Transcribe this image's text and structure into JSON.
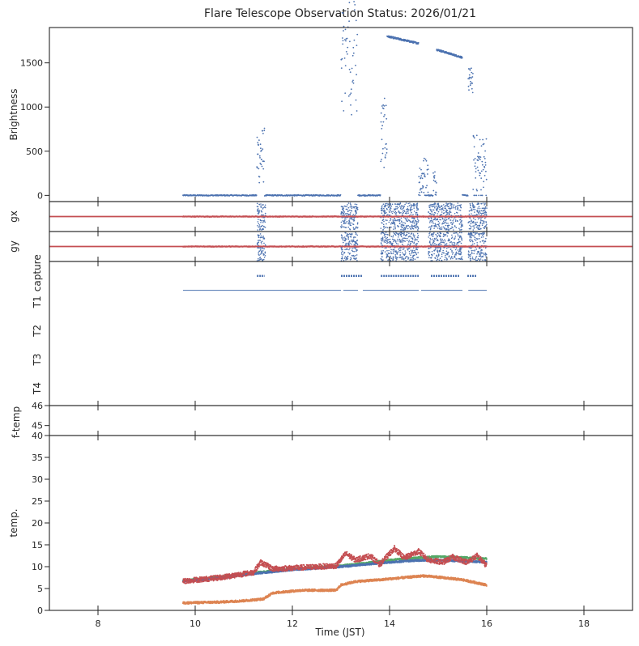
{
  "title": "Flare Telescope Observation Status: 2026/01/21",
  "xlabel": "Time (JST)",
  "xlim": [
    7,
    19
  ],
  "xticks": [
    8,
    10,
    12,
    14,
    16,
    18
  ],
  "colors": {
    "blue": "#4c72b0",
    "orange": "#dd8452",
    "green": "#55a868",
    "red": "#c44e52",
    "text": "#262626"
  },
  "chart_data": [
    {
      "id": "brightness",
      "type": "scatter",
      "ylabel": "Brightness",
      "ylim": [
        -70,
        1900
      ],
      "yticks": [
        0,
        500,
        1000,
        1500
      ],
      "observation_span": [
        9.75,
        16.0
      ],
      "series": [
        {
          "color": "blue",
          "segments": [
            {
              "x0": 9.75,
              "x1": 11.27,
              "y": 0,
              "mode": "flat"
            },
            {
              "x0": 11.27,
              "x1": 11.43,
              "y": 450,
              "spread": 650,
              "mode": "burst"
            },
            {
              "x0": 11.43,
              "x1": 13.0,
              "y": 0,
              "mode": "flat"
            },
            {
              "x0": 13.0,
              "x1": 13.35,
              "y": 1800,
              "spread": 1800,
              "mode": "burst"
            },
            {
              "x0": 13.35,
              "x1": 13.82,
              "y": 0,
              "mode": "flat"
            },
            {
              "x0": 13.82,
              "x1": 13.95,
              "y": 700,
              "spread": 800,
              "mode": "burst"
            },
            {
              "x0": 13.95,
              "x1": 14.6,
              "y0": 1800,
              "y1": 1720,
              "mode": "ramp"
            },
            {
              "x0": 14.6,
              "x1": 14.8,
              "y": 200,
              "spread": 500,
              "mode": "burst"
            },
            {
              "x0": 14.8,
              "x1": 14.9,
              "y": 0,
              "mode": "flat"
            },
            {
              "x0": 14.9,
              "x1": 14.97,
              "y": 150,
              "spread": 300,
              "mode": "burst"
            },
            {
              "x0": 14.97,
              "x1": 15.5,
              "y0": 1650,
              "y1": 1560,
              "mode": "ramp"
            },
            {
              "x0": 15.5,
              "x1": 15.62,
              "y": 0,
              "mode": "flat"
            },
            {
              "x0": 15.62,
              "x1": 15.72,
              "y": 1300,
              "spread": 300,
              "mode": "burst"
            },
            {
              "x0": 15.72,
              "x1": 16.0,
              "y": 300,
              "spread": 800,
              "mode": "burst"
            }
          ]
        }
      ]
    },
    {
      "id": "gx",
      "type": "scatter",
      "ylabel": "gx",
      "ylim": [
        -1,
        1
      ],
      "reference_line": {
        "y": 0,
        "color": "red"
      },
      "series": [
        {
          "color": "red",
          "x0": 9.75,
          "x1": 16.0,
          "y": 0,
          "mode": "flat"
        },
        {
          "color": "blue",
          "noise_windows": [
            [
              11.27,
              11.45
            ],
            [
              13.0,
              13.35
            ],
            [
              13.82,
              14.6
            ],
            [
              14.8,
              15.5
            ],
            [
              15.62,
              16.0
            ]
          ],
          "spread": 0.9
        }
      ]
    },
    {
      "id": "gy",
      "type": "scatter",
      "ylabel": "gy",
      "ylim": [
        -1,
        1
      ],
      "reference_line": {
        "y": 0,
        "color": "red"
      },
      "series": [
        {
          "color": "red",
          "x0": 9.75,
          "x1": 16.0,
          "y": 0,
          "mode": "flat"
        },
        {
          "color": "blue",
          "noise_windows": [
            [
              11.27,
              11.45
            ],
            [
              13.0,
              13.35
            ],
            [
              13.82,
              14.6
            ],
            [
              14.8,
              15.5
            ],
            [
              15.62,
              16.0
            ]
          ],
          "spread": 0.95
        }
      ]
    },
    {
      "id": "status",
      "type": "scatter",
      "categories": [
        "capture",
        "T1",
        "T2",
        "T3",
        "T4"
      ],
      "series": [
        {
          "name": "capture",
          "color": "blue",
          "ranges": [
            [
              11.27,
              11.43
            ],
            [
              13.0,
              13.45
            ],
            [
              13.82,
              14.6
            ],
            [
              14.85,
              15.45
            ],
            [
              15.6,
              15.8
            ]
          ],
          "row": 0.5
        },
        {
          "name": "T1",
          "color": "blue",
          "ranges": [
            [
              9.75,
              13.0
            ],
            [
              13.05,
              13.35
            ],
            [
              13.45,
              14.6
            ],
            [
              14.65,
              15.5
            ],
            [
              15.62,
              16.0
            ]
          ],
          "row": 1
        }
      ]
    },
    {
      "id": "f-temp",
      "type": "scatter",
      "ylabel": "f-temp",
      "ylim": [
        44.5,
        46
      ],
      "yticks": [
        45,
        46
      ],
      "series": []
    },
    {
      "id": "temp",
      "type": "scatter",
      "ylabel": "temp.",
      "ylim": [
        0,
        40
      ],
      "yticks": [
        0,
        5,
        10,
        15,
        20,
        25,
        30,
        35,
        40
      ],
      "series": [
        {
          "color": "orange",
          "points": [
            [
              9.75,
              1.7
            ],
            [
              10.5,
              1.9
            ],
            [
              11.0,
              2.2
            ],
            [
              11.4,
              2.6
            ],
            [
              11.6,
              4.0
            ],
            [
              12.2,
              4.6
            ],
            [
              12.9,
              4.6
            ],
            [
              13.0,
              5.8
            ],
            [
              13.3,
              6.6
            ],
            [
              13.8,
              7.0
            ],
            [
              14.2,
              7.4
            ],
            [
              14.7,
              7.9
            ],
            [
              15.0,
              7.6
            ],
            [
              15.5,
              7.0
            ],
            [
              16.0,
              5.8
            ]
          ],
          "spread": 0.25
        },
        {
          "color": "green",
          "points": [
            [
              9.75,
              6.8
            ],
            [
              10.5,
              7.6
            ],
            [
              11.3,
              8.7
            ],
            [
              12.0,
              9.5
            ],
            [
              13.0,
              10.2
            ],
            [
              13.5,
              10.8
            ],
            [
              14.0,
              11.5
            ],
            [
              14.5,
              12.0
            ],
            [
              15.0,
              12.3
            ],
            [
              15.5,
              12.1
            ],
            [
              16.0,
              11.8
            ]
          ],
          "spread": 0.2
        },
        {
          "color": "blue",
          "points": [
            [
              9.75,
              6.7
            ],
            [
              10.5,
              7.4
            ],
            [
              11.3,
              8.5
            ],
            [
              12.0,
              9.3
            ],
            [
              13.0,
              10.0
            ],
            [
              13.5,
              10.5
            ],
            [
              14.0,
              11.0
            ],
            [
              14.5,
              11.4
            ],
            [
              15.0,
              11.5
            ],
            [
              15.5,
              11.3
            ],
            [
              16.0,
              11.0
            ]
          ],
          "spread": 0.2
        },
        {
          "color": "red",
          "points": [
            [
              9.75,
              6.7
            ],
            [
              10.5,
              7.5
            ],
            [
              11.2,
              8.7
            ],
            [
              11.35,
              11.0
            ],
            [
              11.6,
              9.5
            ],
            [
              12.2,
              9.8
            ],
            [
              12.9,
              10.2
            ],
            [
              13.1,
              13.0
            ],
            [
              13.3,
              11.5
            ],
            [
              13.6,
              12.5
            ],
            [
              13.8,
              10.5
            ],
            [
              14.1,
              14.2
            ],
            [
              14.3,
              12.0
            ],
            [
              14.6,
              13.5
            ],
            [
              14.8,
              11.5
            ],
            [
              15.1,
              11.0
            ],
            [
              15.3,
              12.2
            ],
            [
              15.6,
              11.0
            ],
            [
              15.8,
              12.5
            ],
            [
              16.0,
              10.2
            ]
          ],
          "spread": 0.6
        }
      ]
    }
  ]
}
